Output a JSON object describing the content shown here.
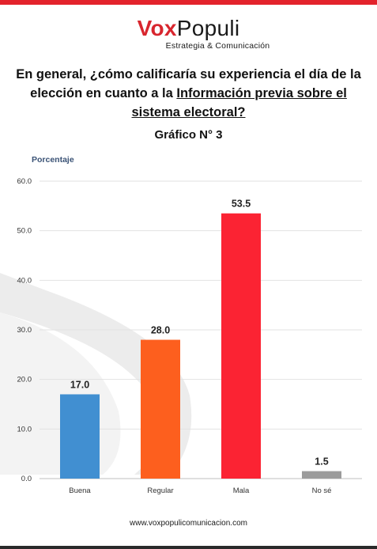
{
  "brand": {
    "name_part1": "Vox",
    "name_part2": "Populi",
    "tagline": "Estrategia & Comunicación"
  },
  "question": {
    "prefix": "En general, ¿cómo calificaría su experiencia el día de la elección en cuanto a la ",
    "highlight": "Información previa sobre el sistema electoral?"
  },
  "subtitle": "Gráfico N° 3",
  "footer": "www.voxpopulicomunicacion.com",
  "colors": {
    "accent": "#e3232c"
  },
  "chart_data": {
    "type": "bar",
    "title": "",
    "ylabel": "Porcentaje",
    "xlabel": "",
    "categories": [
      "Buena",
      "Regular",
      "Mala",
      "No sé"
    ],
    "values": [
      17.0,
      28.0,
      53.5,
      1.5
    ],
    "value_labels": [
      "17.0",
      "28.0",
      "53.5",
      "1.5"
    ],
    "colors": [
      "#418fd1",
      "#fd5f1e",
      "#fb2333",
      "#9b9b9b"
    ],
    "ylim": [
      0,
      60
    ],
    "yticks": [
      "0.0",
      "10.0",
      "20.0",
      "30.0",
      "40.0",
      "50.0",
      "60.0"
    ],
    "grid": true,
    "legend": "none"
  }
}
